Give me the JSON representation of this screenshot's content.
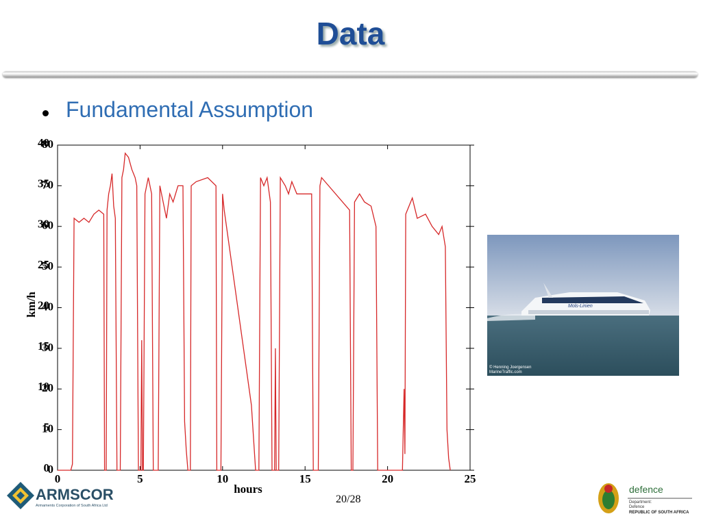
{
  "slide": {
    "title": "Data",
    "bullet": "Fundamental Assumption",
    "page_number": "20/28",
    "image_credit": [
      "© Henning Joergensen",
      "MarineTraffic.com"
    ],
    "ship_name": "Mols-Linien",
    "left_logo": {
      "name": "ARMSCOR",
      "subtitle": "Armaments Corporation of South Africa Ltd"
    },
    "right_logo": {
      "name": "defence",
      "lines": [
        "Department:",
        "Defence",
        "REPUBLIC OF SOUTH AFRICA"
      ]
    }
  },
  "chart_data": {
    "type": "line",
    "xlabel": "hours",
    "ylabel": "km/h",
    "x": [
      0,
      0.8,
      0.9,
      1.0,
      1.3,
      1.6,
      1.9,
      2.2,
      2.5,
      2.8,
      2.85,
      2.95,
      3.0,
      3.1,
      3.2,
      3.3,
      3.4,
      3.5,
      3.6,
      3.8,
      3.9,
      4.0,
      4.1,
      4.3,
      4.5,
      4.7,
      4.8,
      4.9,
      5.05,
      5.1,
      5.15,
      5.2,
      5.3,
      5.5,
      5.7,
      5.8,
      6.1,
      6.2,
      6.4,
      6.6,
      6.8,
      7.0,
      7.3,
      7.6,
      7.7,
      7.8,
      7.9,
      8.05,
      8.1,
      8.4,
      9.1,
      9.6,
      9.65,
      9.9,
      10.0,
      10.1,
      11.75,
      12.0,
      12.2,
      12.3,
      12.5,
      12.7,
      12.9,
      13.0,
      13.15,
      13.2,
      13.25,
      13.4,
      13.5,
      13.8,
      14.0,
      14.2,
      14.5,
      15.0,
      15.4,
      15.5,
      15.8,
      15.9,
      16.0,
      17.7,
      17.8,
      17.9,
      18.0,
      18.3,
      18.6,
      19.0,
      19.3,
      19.4,
      20.9,
      21.0,
      21.05,
      21.1,
      21.5,
      21.8,
      22.3,
      22.7,
      23.1,
      23.3,
      23.5,
      23.6,
      23.7,
      23.8
    ],
    "series": [
      {
        "color": "#d62728",
        "values": [
          0,
          0,
          1.5,
          62,
          61,
          62,
          61,
          63,
          64,
          63,
          0,
          0,
          64,
          68,
          70,
          73,
          65,
          62,
          0,
          0,
          72,
          74,
          78,
          77,
          74,
          72,
          70,
          0,
          0,
          32,
          0,
          0,
          68,
          72,
          68,
          0,
          0,
          70,
          66,
          62,
          68,
          66,
          70,
          70,
          12,
          5,
          0,
          0,
          70,
          71,
          72,
          70,
          0,
          0,
          68,
          64,
          16,
          0,
          0,
          72,
          70,
          72,
          66,
          0,
          0,
          30,
          0,
          0,
          72,
          70,
          68,
          71,
          68,
          68,
          68,
          0,
          0,
          70,
          72,
          64,
          0,
          0,
          66,
          68,
          66,
          65,
          60,
          0,
          0,
          20,
          4,
          63,
          67,
          62,
          63,
          60,
          58,
          60,
          55,
          10,
          3,
          0
        ]
      }
    ],
    "xlim": [
      0,
      25
    ],
    "xticks": [
      0,
      5,
      10,
      15,
      20,
      25
    ],
    "ylim": [
      0,
      80
    ],
    "yticks": [
      0,
      10,
      20,
      30,
      40,
      50,
      60,
      70,
      80
    ],
    "y2lim": [
      0,
      40
    ],
    "y2ticks": [
      0,
      5,
      10,
      15,
      20,
      25,
      30,
      35,
      40
    ]
  }
}
